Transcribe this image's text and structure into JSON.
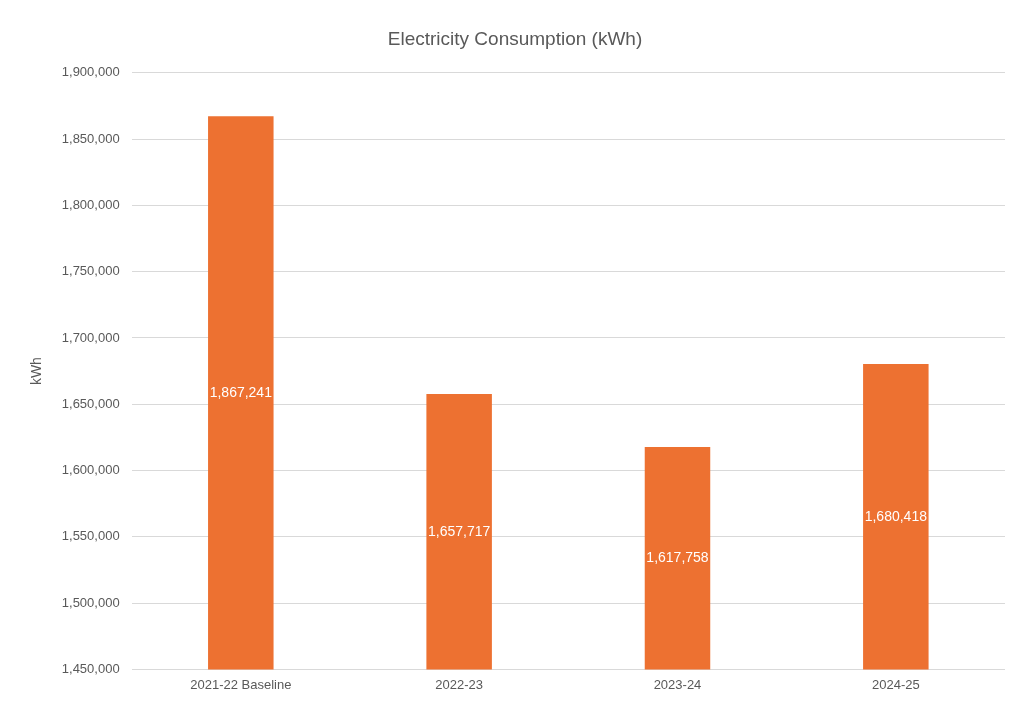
{
  "chart_data": {
    "type": "bar",
    "title": "Electricity Consumption (kWh)",
    "ylabel": "kWh",
    "categories": [
      "2021-22 Baseline",
      "2022-23",
      "2023-24",
      "2024-25"
    ],
    "values": [
      1867241,
      1657717,
      1617758,
      1680418
    ],
    "color": "#ed7131",
    "value_labels": [
      "1,867,241",
      "1,657,717",
      "1,617,758",
      "1,680,418"
    ],
    "ylim": [
      1450000,
      1900000
    ],
    "yticks": [
      {
        "value": 1450000,
        "label": "1,450,000"
      },
      {
        "value": 1500000,
        "label": "1,500,000"
      },
      {
        "value": 1550000,
        "label": "1,550,000"
      },
      {
        "value": 1600000,
        "label": "1,600,000"
      },
      {
        "value": 1650000,
        "label": "1,650,000"
      },
      {
        "value": 1700000,
        "label": "1,700,000"
      },
      {
        "value": 1750000,
        "label": "1,750,000"
      },
      {
        "value": 1800000,
        "label": "1,800,000"
      },
      {
        "value": 1850000,
        "label": "1,850,000"
      },
      {
        "value": 1900000,
        "label": "1,900,000"
      }
    ],
    "grid": "y",
    "legend": false
  }
}
